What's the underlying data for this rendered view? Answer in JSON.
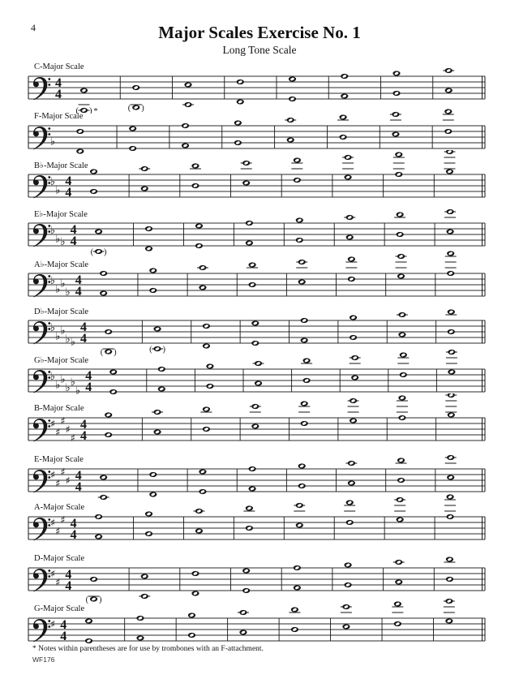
{
  "page": {
    "number": "4",
    "title": "Major Scales Exercise No. 1",
    "subtitle": "Long Tone Scale",
    "footnote": "* Notes within parentheses are for use by trombones with an F-attachment.",
    "plate": "WF176"
  },
  "notation": {
    "clef": "bass",
    "ink_color": "#161616",
    "staffline_color": "#2b2b2b",
    "measures_per_staff": 8
  },
  "staves": [
    {
      "label": "C-Major Scale",
      "key": "C major",
      "acc_type": "none",
      "acc_count": 0,
      "acc_steps": [],
      "time_sig": "4/4",
      "lower_start_step": -4,
      "notes_lower": [
        "C2",
        "D2",
        "E2",
        "F2",
        "G2",
        "A2",
        "B2",
        "C3"
      ],
      "notes_upper": [
        "C3",
        "D3",
        "E3",
        "F3",
        "G3",
        "A3",
        "B3",
        "C4"
      ],
      "paren_measures": [
        0,
        1
      ],
      "asterisk_measures": [
        0
      ]
    },
    {
      "label": "F-Major Scale",
      "key": "F major",
      "acc_type": "flat",
      "acc_count": 1,
      "acc_steps": [
        2
      ],
      "time_sig": null,
      "lower_start_step": -1,
      "notes_lower": [
        "F2",
        "G2",
        "A2",
        "B♭2",
        "C3",
        "D3",
        "E3",
        "F3"
      ],
      "notes_upper": [
        "F3",
        "G3",
        "A3",
        "B♭3",
        "C4",
        "D4",
        "E4",
        "F4"
      ],
      "paren_measures": [],
      "asterisk_measures": []
    },
    {
      "label": "B♭-Major Scale",
      "key": "B-flat major",
      "acc_type": "flat",
      "acc_count": 2,
      "acc_steps": [
        5,
        2
      ],
      "time_sig": "4/4",
      "lower_start_step": 2,
      "notes_lower": [
        "B♭2",
        "C3",
        "D3",
        "E♭3",
        "F3",
        "G3",
        "A3",
        "B♭3"
      ],
      "notes_upper": [
        "B♭3",
        "C4",
        "D4",
        "E♭4",
        "F4",
        "G4",
        "A4",
        "B♭4"
      ],
      "paren_measures": [],
      "asterisk_measures": []
    },
    {
      "label": "E♭-Major Scale",
      "key": "E-flat major",
      "acc_type": "flat",
      "acc_count": 3,
      "acc_steps": [
        5,
        2,
        1
      ],
      "time_sig": "4/4",
      "lower_start_step": -2,
      "notes_lower": [
        "E♭2",
        "F2",
        "G2",
        "A♭2",
        "B♭2",
        "C3",
        "D3",
        "E♭3"
      ],
      "notes_upper": [
        "E♭3",
        "F3",
        "G3",
        "A♭3",
        "B♭3",
        "C4",
        "D4",
        "E♭4"
      ],
      "paren_measures": [
        0
      ],
      "asterisk_measures": []
    },
    {
      "label": "A♭-Major Scale",
      "key": "A-flat major",
      "acc_type": "flat",
      "acc_count": 4,
      "acc_steps": [
        5,
        2,
        4,
        1
      ],
      "time_sig": "4/4",
      "lower_start_step": 1,
      "notes_lower": [
        "A♭2",
        "B♭2",
        "C3",
        "D♭3",
        "E♭3",
        "F3",
        "G3",
        "A♭3"
      ],
      "notes_upper": [
        "A♭3",
        "B♭3",
        "C4",
        "D♭4",
        "E♭4",
        "F4",
        "G4",
        "A♭4"
      ],
      "paren_measures": [],
      "asterisk_measures": []
    },
    {
      "label": "D♭-Major Scale",
      "key": "D-flat major",
      "acc_type": "flat",
      "acc_count": 5,
      "acc_steps": [
        5,
        2,
        4,
        1,
        0
      ],
      "time_sig": "4/4",
      "lower_start_step": -3,
      "notes_lower": [
        "D♭2",
        "E♭2",
        "F2",
        "G♭2",
        "A♭2",
        "B♭2",
        "C3",
        "D♭3"
      ],
      "notes_upper": [
        "D♭3",
        "E♭3",
        "F3",
        "G♭3",
        "A♭3",
        "B♭3",
        "C4",
        "D♭4"
      ],
      "paren_measures": [
        0,
        1
      ],
      "asterisk_measures": []
    },
    {
      "label": "G♭-Major Scale",
      "key": "G-flat major",
      "acc_type": "flat",
      "acc_count": 6,
      "acc_steps": [
        5,
        2,
        4,
        1,
        3,
        0
      ],
      "time_sig": "4/4",
      "lower_start_step": 0,
      "notes_lower": [
        "G♭2",
        "A♭2",
        "B♭2",
        "C♭3",
        "D♭3",
        "E♭3",
        "F3",
        "G♭3"
      ],
      "notes_upper": [
        "G♭3",
        "A♭3",
        "B♭3",
        "C♭4",
        "D♭4",
        "E♭4",
        "F4",
        "G♭4"
      ],
      "paren_measures": [],
      "asterisk_measures": []
    },
    {
      "label": "B-Major Scale",
      "key": "B major",
      "acc_type": "sharp",
      "acc_count": 5,
      "acc_steps": [
        6,
        3,
        7,
        4,
        1
      ],
      "time_sig": "4/4",
      "lower_start_step": 2,
      "notes_lower": [
        "B2",
        "C♯3",
        "D♯3",
        "E3",
        "F♯3",
        "G♯3",
        "A♯3",
        "B3"
      ],
      "notes_upper": [
        "B3",
        "C♯4",
        "D♯4",
        "E4",
        "F♯4",
        "G♯4",
        "A♯4",
        "B4"
      ],
      "paren_measures": [],
      "asterisk_measures": []
    },
    {
      "label": "E-Major Scale",
      "key": "E major",
      "acc_type": "sharp",
      "acc_count": 4,
      "acc_steps": [
        6,
        3,
        7,
        4
      ],
      "time_sig": "4/4",
      "lower_start_step": -2,
      "notes_lower": [
        "E2",
        "F♯2",
        "G♯2",
        "A2",
        "B2",
        "C♯3",
        "D♯3",
        "E3"
      ],
      "notes_upper": [
        "E3",
        "F♯3",
        "G♯3",
        "A3",
        "B3",
        "C♯4",
        "D♯4",
        "E4"
      ],
      "paren_measures": [],
      "asterisk_measures": []
    },
    {
      "label": "A-Major Scale",
      "key": "A major",
      "acc_type": "sharp",
      "acc_count": 3,
      "acc_steps": [
        6,
        3,
        7
      ],
      "time_sig": "4/4",
      "lower_start_step": 1,
      "notes_lower": [
        "A2",
        "B2",
        "C♯3",
        "D3",
        "E3",
        "F♯3",
        "G♯3",
        "A3"
      ],
      "notes_upper": [
        "A3",
        "B3",
        "C♯4",
        "D4",
        "E4",
        "F♯4",
        "G♯4",
        "A4"
      ],
      "paren_measures": [],
      "asterisk_measures": []
    },
    {
      "label": "D-Major Scale",
      "key": "D major",
      "acc_type": "sharp",
      "acc_count": 2,
      "acc_steps": [
        6,
        3
      ],
      "time_sig": "4/4",
      "lower_start_step": -3,
      "notes_lower": [
        "D2",
        "E2",
        "F♯2",
        "G2",
        "A2",
        "B2",
        "C♯3",
        "D3"
      ],
      "notes_upper": [
        "D3",
        "E3",
        "F♯3",
        "G3",
        "A3",
        "B3",
        "C♯4",
        "D4"
      ],
      "paren_measures": [
        0
      ],
      "asterisk_measures": []
    },
    {
      "label": "G-Major Scale",
      "key": "G major",
      "acc_type": "sharp",
      "acc_count": 1,
      "acc_steps": [
        6
      ],
      "time_sig": "4/4",
      "lower_start_step": 0,
      "notes_lower": [
        "G2",
        "A2",
        "B2",
        "C3",
        "D3",
        "E3",
        "F♯3",
        "G3"
      ],
      "notes_upper": [
        "G3",
        "A3",
        "B3",
        "C4",
        "D4",
        "E4",
        "F♯4",
        "G4"
      ],
      "paren_measures": [],
      "asterisk_measures": []
    }
  ]
}
